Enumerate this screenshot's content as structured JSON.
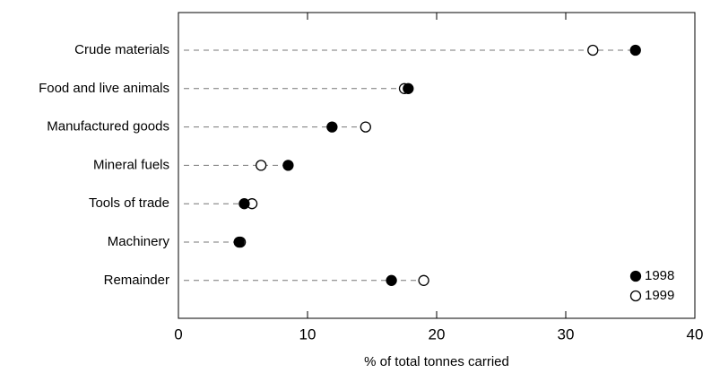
{
  "chart_data": {
    "type": "dot",
    "categories": [
      "Crude materials",
      "Food and live animals",
      "Manufactured goods",
      "Mineral fuels",
      "Tools of trade",
      "Machinery",
      "Remainder"
    ],
    "series": [
      {
        "name": "1998",
        "color": "#000000",
        "values": [
          35.4,
          17.8,
          11.9,
          8.5,
          5.1,
          4.7,
          16.5
        ]
      },
      {
        "name": "1999",
        "color": "#ffffff",
        "values": [
          32.1,
          17.5,
          14.5,
          6.4,
          5.7,
          4.8,
          19.0
        ]
      }
    ],
    "xlabel": "% of total tonnes carried",
    "xlim": [
      0,
      40
    ],
    "xticks": [
      0,
      10,
      20,
      30,
      40
    ],
    "legend": "lower right"
  }
}
